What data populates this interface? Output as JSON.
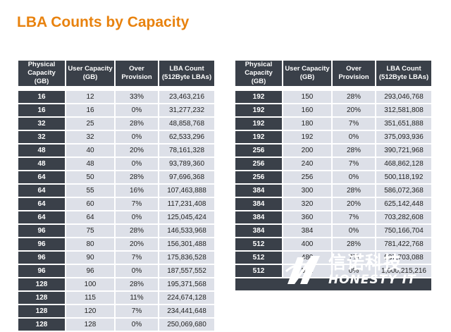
{
  "title": "LBA Counts by Capacity",
  "headers": {
    "physical": "Physical Capacity (GB)",
    "user": "User Capacity (GB)",
    "over": "Over Provision",
    "lba": "LBA Count (512Byte LBAs)"
  },
  "left_rows": [
    [
      "16",
      "12",
      "33%",
      "23,463,216"
    ],
    [
      "16",
      "16",
      "0%",
      "31,277,232"
    ],
    [
      "32",
      "25",
      "28%",
      "48,858,768"
    ],
    [
      "32",
      "32",
      "0%",
      "62,533,296"
    ],
    [
      "48",
      "40",
      "20%",
      "78,161,328"
    ],
    [
      "48",
      "48",
      "0%",
      "93,789,360"
    ],
    [
      "64",
      "50",
      "28%",
      "97,696,368"
    ],
    [
      "64",
      "55",
      "16%",
      "107,463,888"
    ],
    [
      "64",
      "60",
      "7%",
      "117,231,408"
    ],
    [
      "64",
      "64",
      "0%",
      "125,045,424"
    ],
    [
      "96",
      "75",
      "28%",
      "146,533,968"
    ],
    [
      "96",
      "80",
      "20%",
      "156,301,488"
    ],
    [
      "96",
      "90",
      "7%",
      "175,836,528"
    ],
    [
      "96",
      "96",
      "0%",
      "187,557,552"
    ],
    [
      "128",
      "100",
      "28%",
      "195,371,568"
    ],
    [
      "128",
      "115",
      "11%",
      "224,674,128"
    ],
    [
      "128",
      "120",
      "7%",
      "234,441,648"
    ],
    [
      "128",
      "128",
      "0%",
      "250,069,680"
    ]
  ],
  "right_rows": [
    [
      "192",
      "150",
      "28%",
      "293,046,768"
    ],
    [
      "192",
      "160",
      "20%",
      "312,581,808"
    ],
    [
      "192",
      "180",
      "7%",
      "351,651,888"
    ],
    [
      "192",
      "192",
      "0%",
      "375,093,936"
    ],
    [
      "256",
      "200",
      "28%",
      "390,721,968"
    ],
    [
      "256",
      "240",
      "7%",
      "468,862,128"
    ],
    [
      "256",
      "256",
      "0%",
      "500,118,192"
    ],
    [
      "384",
      "300",
      "28%",
      "586,072,368"
    ],
    [
      "384",
      "320",
      "20%",
      "625,142,448"
    ],
    [
      "384",
      "360",
      "7%",
      "703,282,608"
    ],
    [
      "384",
      "384",
      "0%",
      "750,166,704"
    ],
    [
      "512",
      "400",
      "28%",
      "781,422,768"
    ],
    [
      "512",
      "480",
      "7%",
      "937,703,088"
    ],
    [
      "512",
      "512",
      "0%",
      "1,000,215,216"
    ]
  ],
  "logo": {
    "chinese": "信诺科技",
    "english": "HONESTY IT"
  },
  "colors": {
    "title": "#e8820e",
    "header_bg": "#3a4049",
    "cell_bg": "#dde0e8"
  }
}
